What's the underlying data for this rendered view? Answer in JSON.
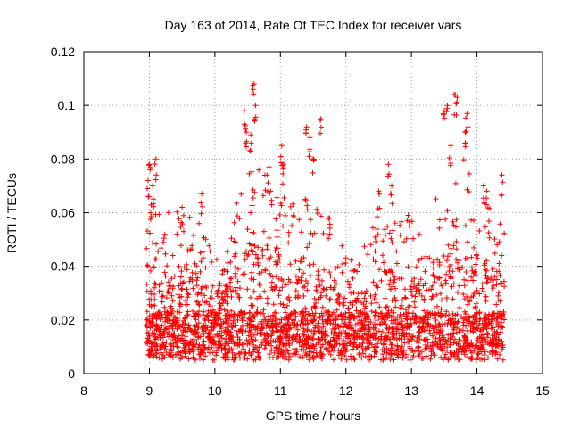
{
  "chart_data": {
    "type": "scatter",
    "title": "Day 163 of 2014, Rate Of TEC Index for receiver vars",
    "xlabel": "GPS time / hours",
    "ylabel": "ROTI / TECUs",
    "xlim": [
      8,
      15
    ],
    "ylim": [
      0,
      0.12
    ],
    "x_ticks": [
      8,
      9,
      10,
      11,
      12,
      13,
      14,
      15
    ],
    "x_tick_labels": [
      "8",
      "9",
      "10",
      "11",
      "12",
      "13",
      "14",
      "15"
    ],
    "y_ticks": [
      0,
      0.02,
      0.04,
      0.06,
      0.08,
      0.1,
      0.12
    ],
    "y_tick_labels": [
      "0",
      "0.02",
      "0.04",
      "0.06",
      "0.08",
      "0.1",
      "0.12"
    ],
    "grid": true,
    "marker": "+",
    "marker_color": "#ff0000",
    "series": [
      {
        "name": "ROTI",
        "description_points": [
          [
            8.98,
            0.072
          ],
          [
            9.0,
            0.078
          ],
          [
            9.05,
            0.07
          ],
          [
            9.1,
            0.08
          ],
          [
            9.02,
            0.06
          ],
          [
            9.5,
            0.062
          ],
          [
            9.8,
            0.067
          ],
          [
            10.45,
            0.098
          ],
          [
            10.48,
            0.09
          ],
          [
            10.6,
            0.108
          ],
          [
            10.62,
            0.1
          ],
          [
            10.55,
            0.089
          ],
          [
            10.85,
            0.068
          ],
          [
            11.02,
            0.085
          ],
          [
            11.05,
            0.078
          ],
          [
            11.4,
            0.092
          ],
          [
            11.45,
            0.088
          ],
          [
            11.5,
            0.08
          ],
          [
            11.62,
            0.095
          ],
          [
            11.75,
            0.058
          ],
          [
            12.5,
            0.068
          ],
          [
            12.65,
            0.078
          ],
          [
            12.7,
            0.07
          ],
          [
            12.95,
            0.059
          ],
          [
            13.5,
            0.098
          ],
          [
            13.55,
            0.1
          ],
          [
            13.65,
            0.104
          ],
          [
            13.7,
            0.103
          ],
          [
            13.85,
            0.097
          ],
          [
            13.82,
            0.09
          ],
          [
            13.6,
            0.085
          ],
          [
            14.1,
            0.07
          ],
          [
            14.15,
            0.068
          ],
          [
            14.38,
            0.074
          ]
        ],
        "activity_profile": [
          [
            9.0,
            0.045
          ],
          [
            9.3,
            0.04
          ],
          [
            9.6,
            0.045
          ],
          [
            9.9,
            0.03
          ],
          [
            10.2,
            0.035
          ],
          [
            10.5,
            0.055
          ],
          [
            10.8,
            0.06
          ],
          [
            11.1,
            0.045
          ],
          [
            11.4,
            0.05
          ],
          [
            11.7,
            0.04
          ],
          [
            12.0,
            0.025
          ],
          [
            12.3,
            0.03
          ],
          [
            12.6,
            0.045
          ],
          [
            12.9,
            0.035
          ],
          [
            13.2,
            0.04
          ],
          [
            13.5,
            0.05
          ],
          [
            13.8,
            0.06
          ],
          [
            14.1,
            0.045
          ],
          [
            14.4,
            0.04
          ]
        ],
        "x_range": [
          8.95,
          14.42
        ]
      }
    ]
  }
}
